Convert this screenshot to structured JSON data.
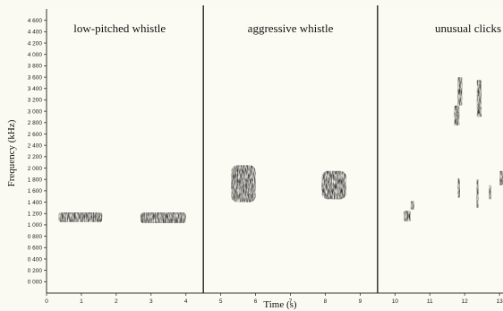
{
  "chart_data": {
    "type": "spectrogram",
    "xlabel": "Time (s)",
    "ylabel": "Frequency (kHz)",
    "xlim": [
      0,
      13.1
    ],
    "ylim": [
      -200,
      4800
    ],
    "x_ticks": [
      0,
      1,
      2,
      3,
      4,
      5,
      6,
      7,
      8,
      9,
      10,
      11,
      12,
      13
    ],
    "x_tick_labels": [
      "0",
      "1",
      "2",
      "3",
      "4",
      "5",
      "6",
      "7",
      "8",
      "9",
      "10",
      "11",
      "12",
      "13"
    ],
    "y_ticks": [
      0,
      200,
      400,
      600,
      800,
      1000,
      1200,
      1400,
      1600,
      1800,
      2000,
      2200,
      2400,
      2600,
      2800,
      3000,
      3200,
      3400,
      3600,
      3800,
      4000,
      4200,
      4400,
      4600
    ],
    "y_tick_labels": [
      "0 000",
      "0 200",
      "0 400",
      "0 600",
      "0 800",
      "1 000",
      "1 200",
      "1 400",
      "1 600",
      "1 800",
      "2 000",
      "2 200",
      "2 400",
      "2 600",
      "2 800",
      "3 000",
      "3 200",
      "3 400",
      "3 600",
      "3 800",
      "4 000",
      "4 200",
      "4 400",
      "4 600"
    ],
    "section_dividers": [
      4.5,
      9.5
    ],
    "sections": [
      {
        "label": "low-pitched whistle",
        "center_time": 2.1
      },
      {
        "label": "aggressive whistle",
        "center_time": 7.0
      },
      {
        "label": "unusual clicks",
        "center_time": 12.1
      }
    ],
    "sound_events": [
      {
        "t_start": 0.35,
        "t_end": 1.6,
        "f_low": 1050,
        "f_high": 1220
      },
      {
        "t_start": 2.7,
        "t_end": 4.0,
        "f_low": 1030,
        "f_high": 1220
      },
      {
        "t_start": 5.3,
        "t_end": 6.0,
        "f_low": 1400,
        "f_high": 2050
      },
      {
        "t_start": 7.9,
        "t_end": 8.6,
        "f_low": 1450,
        "f_high": 1950
      },
      {
        "t_start": 10.25,
        "t_end": 10.45,
        "f_low": 1060,
        "f_high": 1250
      },
      {
        "t_start": 10.45,
        "t_end": 10.55,
        "f_low": 1270,
        "f_high": 1420
      },
      {
        "t_start": 11.7,
        "t_end": 11.85,
        "f_low": 2750,
        "f_high": 3100
      },
      {
        "t_start": 11.8,
        "t_end": 11.93,
        "f_low": 3100,
        "f_high": 3600
      },
      {
        "t_start": 12.35,
        "t_end": 12.48,
        "f_low": 2900,
        "f_high": 3550
      },
      {
        "t_start": 11.8,
        "t_end": 11.86,
        "f_low": 1480,
        "f_high": 1820
      },
      {
        "t_start": 12.34,
        "t_end": 12.4,
        "f_low": 1300,
        "f_high": 1800
      },
      {
        "t_start": 12.7,
        "t_end": 12.76,
        "f_low": 1450,
        "f_high": 1700
      },
      {
        "t_start": 13.0,
        "t_end": 13.1,
        "f_low": 1700,
        "f_high": 1950
      }
    ],
    "grid": false,
    "legend": "none"
  }
}
